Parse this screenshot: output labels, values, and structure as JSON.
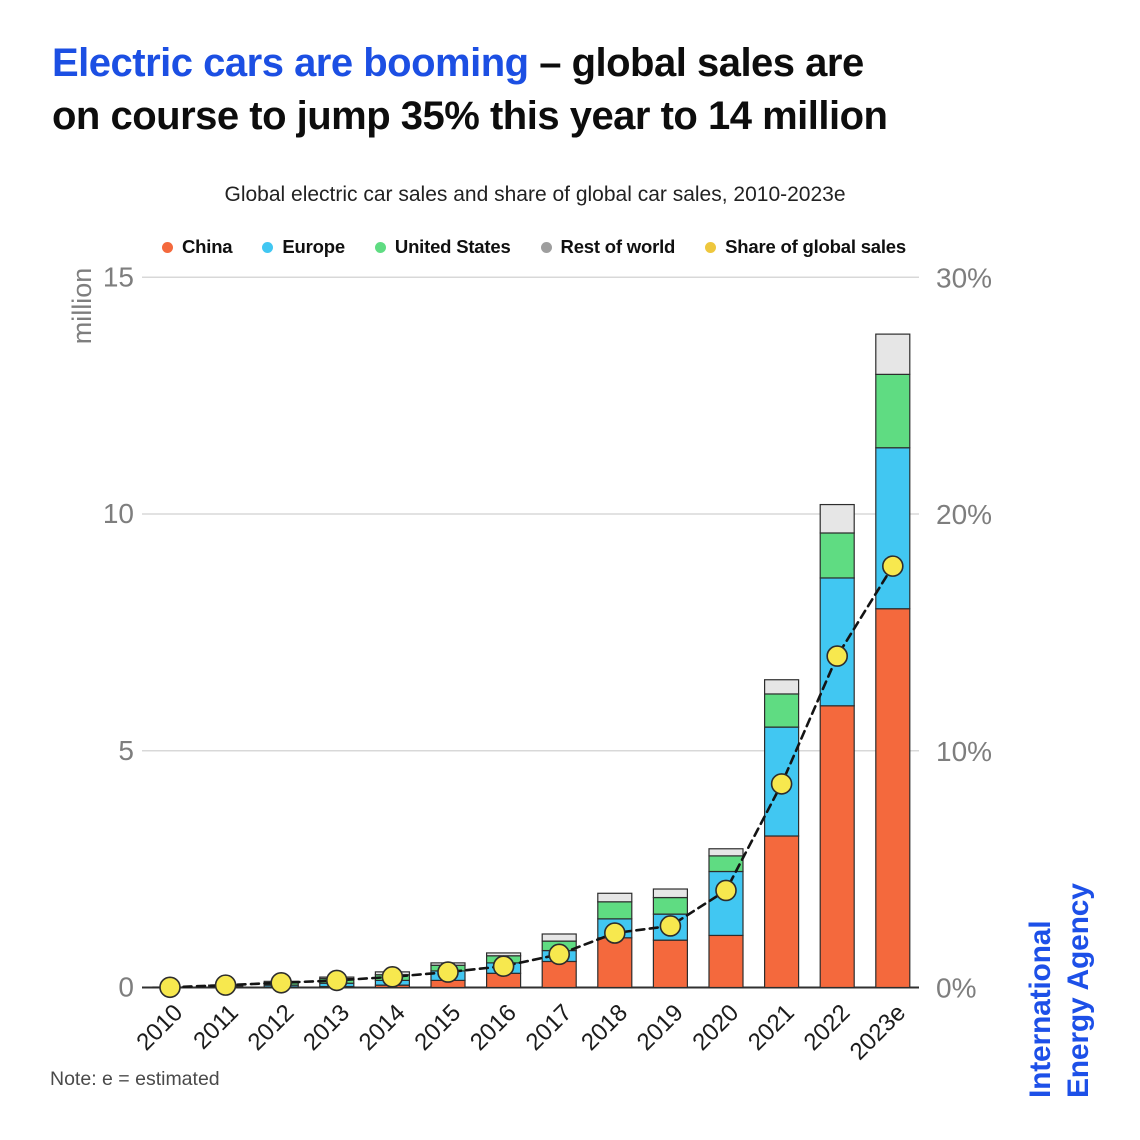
{
  "page": {
    "title": {
      "highlight": "Electric cars are booming",
      "rest": " – global sales are",
      "line2": "on course to jump 35% this year to 14 million"
    },
    "note": "Note: e = estimated",
    "source_logo": {
      "line1": "International",
      "line2": "Energy Agency"
    }
  },
  "colors": {
    "title_highlight": "#1c4fe3",
    "title_text": "#0d0d0d",
    "subtitle_text": "#222222",
    "axis_text": "#7e7e7e",
    "xlabel_text": "#1c1c1c",
    "grid": "#d8d8d8",
    "baseline": "#303030",
    "bar_outline": "#2d2d2d",
    "dash_line": "#141414",
    "note_text": "#4a4a4a",
    "logo_blue": "#1d50e8"
  },
  "chart_data": {
    "type": "bar",
    "stacked": true,
    "overlay": "line",
    "title": "Global electric car sales and share of global car sales, 2010-2023e",
    "categories": [
      "2010",
      "2011",
      "2012",
      "2013",
      "2014",
      "2015",
      "2016",
      "2017",
      "2018",
      "2019",
      "2020",
      "2021",
      "2022",
      "2023e"
    ],
    "series": [
      {
        "name": "China",
        "color": "#f4693d",
        "values": [
          0.0,
          0.01,
          0.01,
          0.02,
          0.05,
          0.15,
          0.3,
          0.55,
          1.05,
          1.0,
          1.1,
          3.2,
          5.95,
          8.0
        ]
      },
      {
        "name": "Europe",
        "color": "#41c7f2",
        "values": [
          0.0,
          0.01,
          0.04,
          0.07,
          0.1,
          0.2,
          0.22,
          0.23,
          0.4,
          0.55,
          1.35,
          2.3,
          2.7,
          3.4
        ]
      },
      {
        "name": "United States",
        "color": "#5fdc82",
        "values": [
          0.0,
          0.02,
          0.05,
          0.1,
          0.12,
          0.12,
          0.15,
          0.2,
          0.36,
          0.35,
          0.33,
          0.7,
          0.95,
          1.55
        ]
      },
      {
        "name": "Rest of world",
        "color": "#e6e6e6",
        "legend_color": "#9e9e9e",
        "values": [
          0.01,
          0.01,
          0.03,
          0.03,
          0.06,
          0.05,
          0.06,
          0.15,
          0.18,
          0.18,
          0.15,
          0.3,
          0.6,
          0.85
        ]
      }
    ],
    "line_series": {
      "name": "Share of global sales",
      "color": "#f7e84e",
      "legend_color": "#eec73d",
      "axis": "right",
      "values": [
        0.01,
        0.1,
        0.2,
        0.3,
        0.45,
        0.65,
        0.9,
        1.4,
        2.3,
        2.6,
        4.1,
        8.6,
        14.0,
        17.8
      ]
    },
    "left_axis": {
      "label": "million",
      "ticks": [
        0,
        5,
        10,
        15
      ],
      "max": 15
    },
    "right_axis": {
      "ticks": [
        "0%",
        "10%",
        "20%",
        "30%"
      ],
      "tick_values": [
        0,
        10,
        20,
        30
      ],
      "max": 30
    },
    "grid": true,
    "legend_position": "top"
  }
}
